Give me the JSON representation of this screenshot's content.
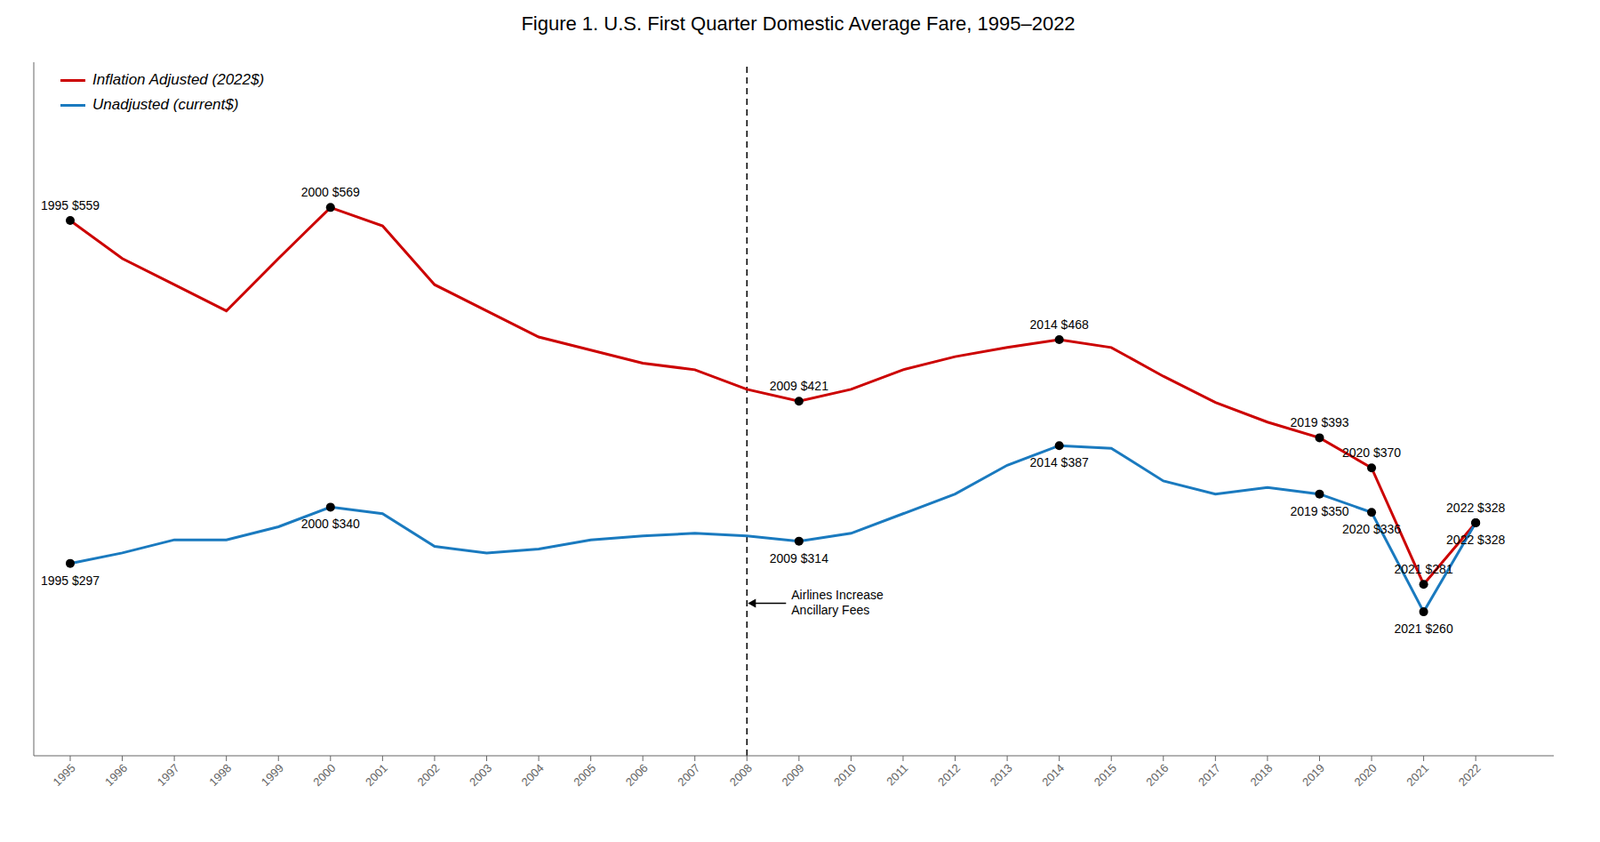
{
  "chart_data": {
    "type": "line",
    "title": "Figure 1. U.S. First Quarter Domestic Average Fare, 1995–2022",
    "x": [
      1995,
      1996,
      1997,
      1998,
      1999,
      2000,
      2001,
      2002,
      2003,
      2004,
      2005,
      2006,
      2007,
      2008,
      2009,
      2010,
      2011,
      2012,
      2013,
      2014,
      2015,
      2016,
      2017,
      2018,
      2019,
      2020,
      2021,
      2022
    ],
    "series": [
      {
        "name": "Inflation Adjusted (2022$)",
        "color": "#cc0000",
        "values": [
          559,
          530,
          510,
          490,
          530,
          569,
          555,
          510,
          490,
          470,
          460,
          450,
          445,
          430,
          421,
          430,
          445,
          455,
          462,
          468,
          462,
          440,
          420,
          405,
          393,
          370,
          281,
          328
        ],
        "value_labels": [
          "1995 $559",
          null,
          null,
          null,
          null,
          "2000 $569",
          null,
          null,
          null,
          null,
          null,
          null,
          null,
          null,
          "2009 $421",
          null,
          null,
          null,
          null,
          "2014 $468",
          null,
          null,
          null,
          null,
          "2019 $393",
          "2020 $370",
          "2021 $281",
          "2022 $328"
        ]
      },
      {
        "name": "Unadjusted (current$)",
        "color": "#1a7abf",
        "values": [
          297,
          305,
          315,
          315,
          325,
          340,
          335,
          310,
          305,
          308,
          315,
          318,
          320,
          318,
          314,
          320,
          335,
          350,
          372,
          387,
          385,
          360,
          350,
          355,
          350,
          336,
          260,
          328
        ],
        "value_labels": [
          "1995 $297",
          null,
          null,
          null,
          null,
          "2000 $340",
          null,
          null,
          null,
          null,
          null,
          null,
          null,
          null,
          "2009 $314",
          null,
          null,
          null,
          null,
          "2014 $387",
          null,
          null,
          null,
          null,
          "2019 $350",
          "2020 $336",
          "2021 $260",
          "2022 $328"
        ]
      }
    ],
    "xlim": [
      1994.3,
      2023.5
    ],
    "xticks": [
      1995,
      1996,
      1997,
      1998,
      1999,
      2000,
      2001,
      2002,
      2003,
      2004,
      2005,
      2006,
      2007,
      2008,
      2009,
      2010,
      2011,
      2012,
      2013,
      2014,
      2015,
      2016,
      2017,
      2018,
      2019,
      2020,
      2021,
      2022
    ],
    "ylim": [
      150,
      680
    ],
    "yticks": [],
    "tick_labels": "x",
    "grid": false,
    "annotations": [
      {
        "x": 2008,
        "text": "Airlines Increase\nAncillary Fees",
        "line_style": "dashed"
      }
    ]
  }
}
